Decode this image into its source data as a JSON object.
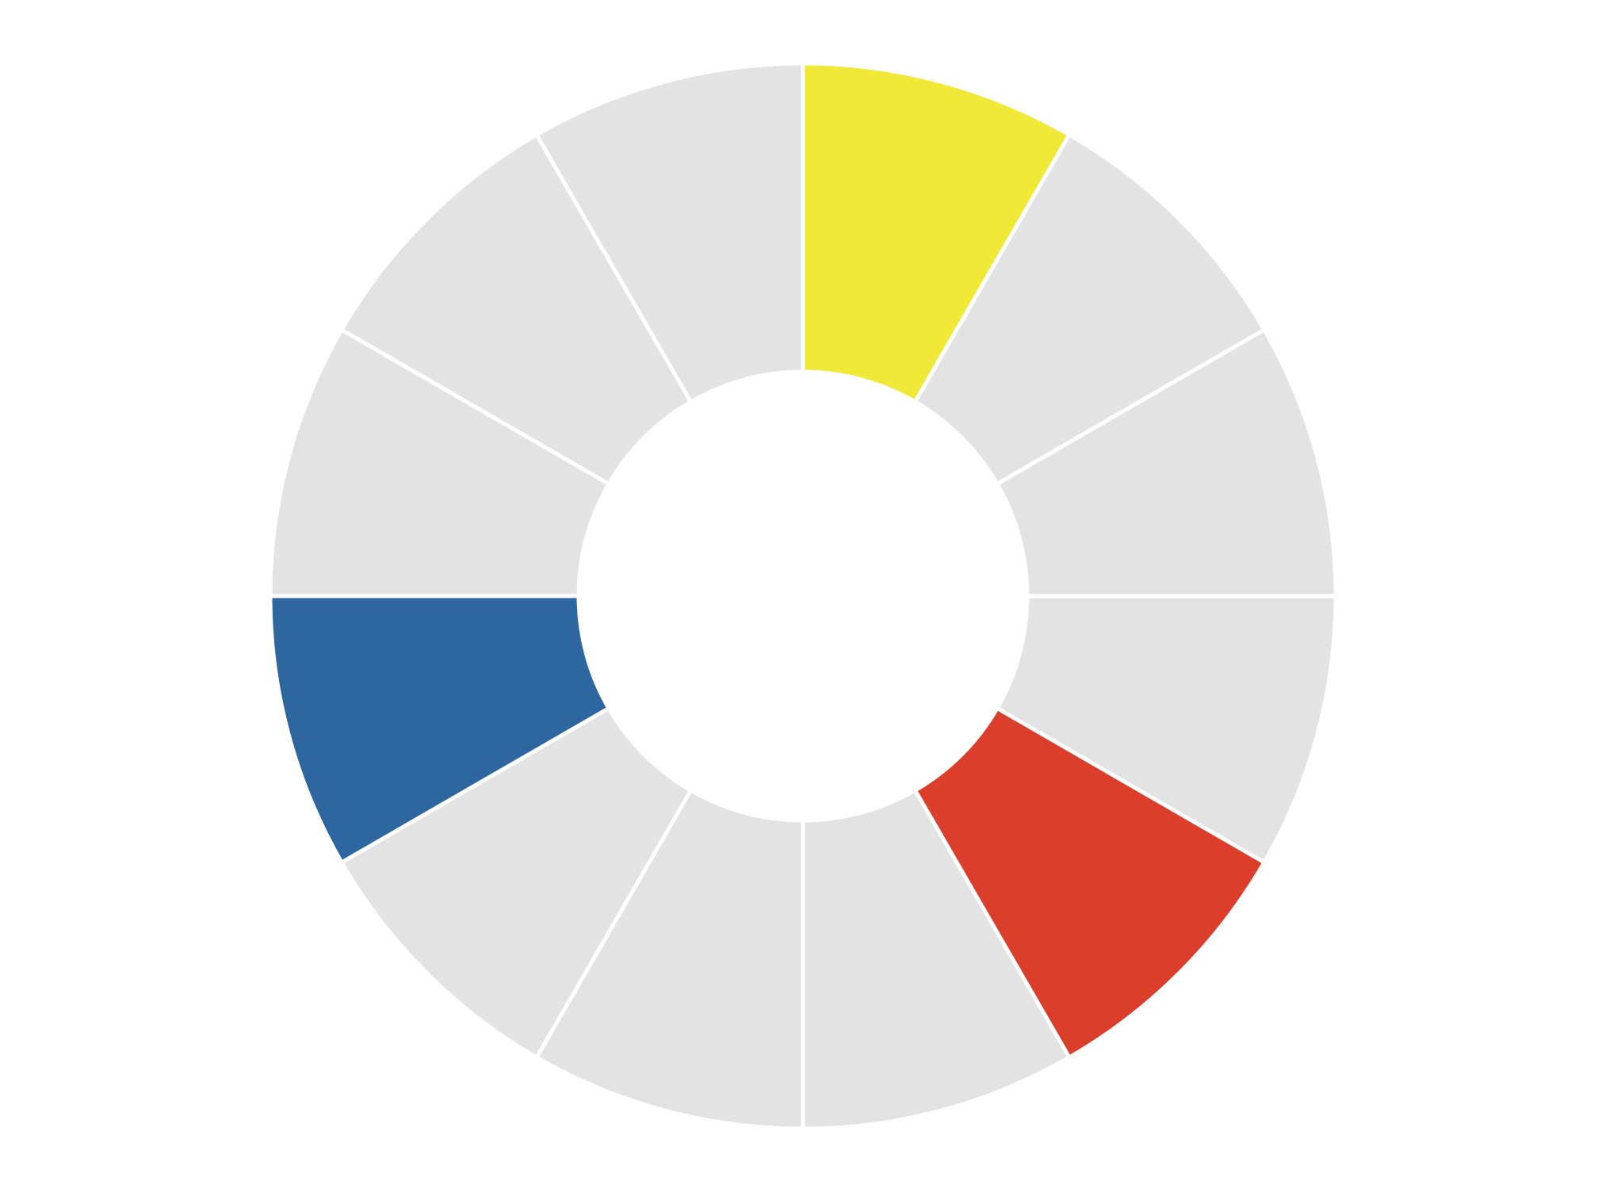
{
  "color_wheel": {
    "segment_count": 12,
    "start": "top",
    "direction": "clockwise",
    "divider_color": "#ffffff",
    "segments": [
      {
        "name": "segment-1",
        "color": "#F0E938",
        "highlighted": true
      },
      {
        "name": "segment-2",
        "color": "#E3E3E3",
        "highlighted": false
      },
      {
        "name": "segment-3",
        "color": "#E3E3E3",
        "highlighted": false
      },
      {
        "name": "segment-4",
        "color": "#E3E3E3",
        "highlighted": false
      },
      {
        "name": "segment-5",
        "color": "#DB3F2C",
        "highlighted": true
      },
      {
        "name": "segment-6",
        "color": "#E3E3E3",
        "highlighted": false
      },
      {
        "name": "segment-7",
        "color": "#E3E3E3",
        "highlighted": false
      },
      {
        "name": "segment-8",
        "color": "#E3E3E3",
        "highlighted": false
      },
      {
        "name": "segment-9",
        "color": "#2E66A0",
        "highlighted": true
      },
      {
        "name": "segment-10",
        "color": "#E3E3E3",
        "highlighted": false
      },
      {
        "name": "segment-11",
        "color": "#E3E3E3",
        "highlighted": false
      },
      {
        "name": "segment-12",
        "color": "#E3E3E3",
        "highlighted": false
      }
    ]
  }
}
